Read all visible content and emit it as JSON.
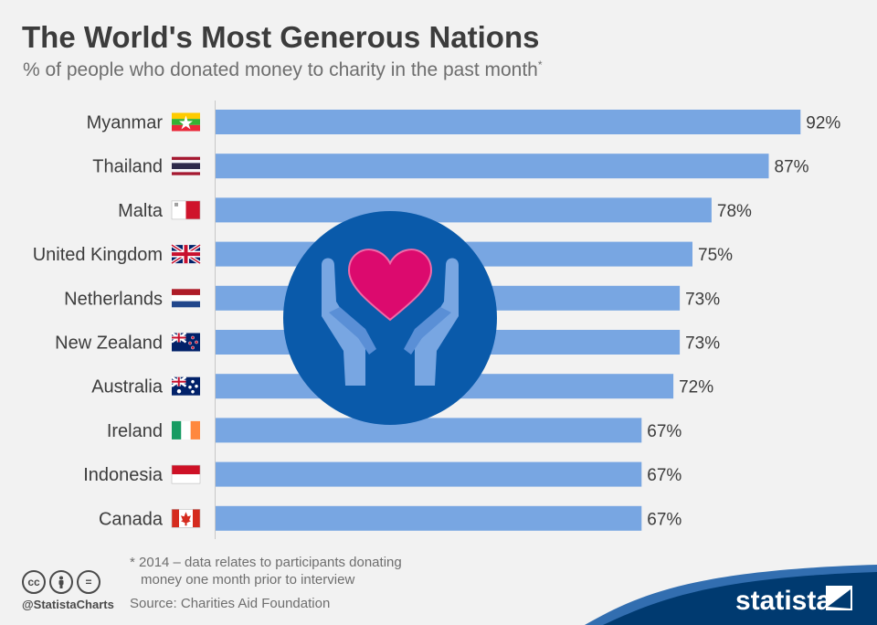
{
  "title": "The World's Most Generous Nations",
  "subtitle": "% of people who donated money to charity in the past month",
  "subtitle_mark": "*",
  "footnote_line1": "* 2014 – data relates to participants donating",
  "footnote_line2": "money one month prior to interview",
  "source": "Source: Charities Aid Foundation",
  "handle": "@StatistaCharts",
  "brand": "statista",
  "icons": [
    "cc-icon",
    "by-icon",
    "nd-icon",
    "heart-in-hands-icon"
  ],
  "colors": {
    "bar": "#78a6e2",
    "circle": "#0a5aaa",
    "heart": "#dc0a6e",
    "hands": "#78a6e2",
    "brand_band": "#003a70"
  },
  "chart_data": {
    "type": "bar",
    "orientation": "horizontal",
    "title": "The World's Most Generous Nations",
    "subtitle": "% of people who donated money to charity in the past month",
    "categories": [
      "Myanmar",
      "Thailand",
      "Malta",
      "United Kingdom",
      "Netherlands",
      "New Zealand",
      "Australia",
      "Ireland",
      "Indonesia",
      "Canada"
    ],
    "values": [
      92,
      87,
      78,
      75,
      73,
      73,
      72,
      67,
      67,
      67
    ],
    "value_labels": [
      "92%",
      "87%",
      "78%",
      "75%",
      "73%",
      "73%",
      "72%",
      "67%",
      "67%",
      "67%"
    ],
    "flags": [
      "myanmar",
      "thailand",
      "malta",
      "united-kingdom",
      "netherlands",
      "new-zealand",
      "australia",
      "ireland",
      "indonesia",
      "canada"
    ],
    "xlim": [
      0,
      100
    ],
    "unit": "%",
    "grid": false
  }
}
